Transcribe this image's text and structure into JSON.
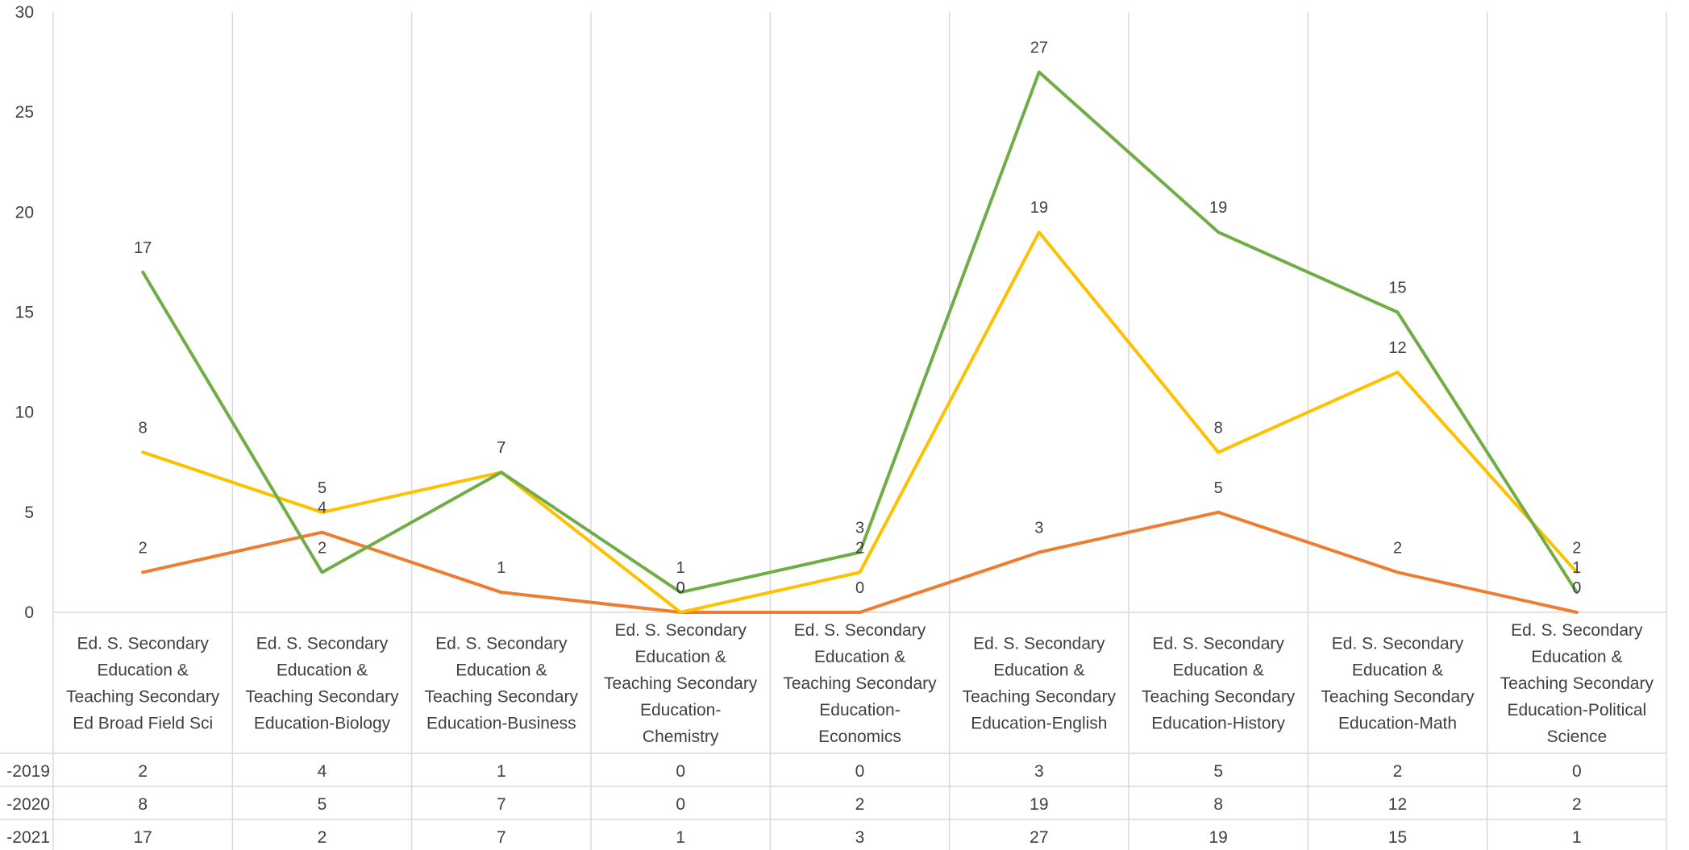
{
  "chart_data": {
    "type": "line",
    "ylim": [
      0,
      30
    ],
    "y_ticks": [
      0,
      5,
      10,
      15,
      20,
      25,
      30
    ],
    "grid": "vertical",
    "legend": "data-table",
    "categories": [
      [
        "Ed. S. Secondary",
        "Education &",
        "Teaching Secondary",
        "Ed Broad Field Sci"
      ],
      [
        "Ed. S. Secondary",
        "Education &",
        "Teaching Secondary",
        "Education-Biology"
      ],
      [
        "Ed. S. Secondary",
        "Education &",
        "Teaching Secondary",
        "Education-Business"
      ],
      [
        "Ed. S. Secondary",
        "Education &",
        "Teaching Secondary",
        "Education-",
        "Chemistry"
      ],
      [
        "Ed. S. Secondary",
        "Education &",
        "Teaching Secondary",
        "Education-",
        "Economics"
      ],
      [
        "Ed. S. Secondary",
        "Education &",
        "Teaching Secondary",
        "Education-English"
      ],
      [
        "Ed. S. Secondary",
        "Education &",
        "Teaching Secondary",
        "Education-History"
      ],
      [
        "Ed. S. Secondary",
        "Education &",
        "Teaching Secondary",
        "Education-Math"
      ],
      [
        "Ed. S. Secondary",
        "Education &",
        "Teaching Secondary",
        "Education-Political",
        "Science"
      ]
    ],
    "series": [
      {
        "name": "-2019",
        "color": "#ED7D31",
        "values": [
          2,
          4,
          1,
          0,
          0,
          3,
          5,
          2,
          0
        ]
      },
      {
        "name": "-2020",
        "color": "#FFC000",
        "values": [
          8,
          5,
          7,
          0,
          2,
          19,
          8,
          12,
          2
        ]
      },
      {
        "name": "-2021",
        "color": "#70AD47",
        "values": [
          17,
          2,
          7,
          1,
          3,
          27,
          19,
          15,
          1
        ]
      }
    ]
  }
}
